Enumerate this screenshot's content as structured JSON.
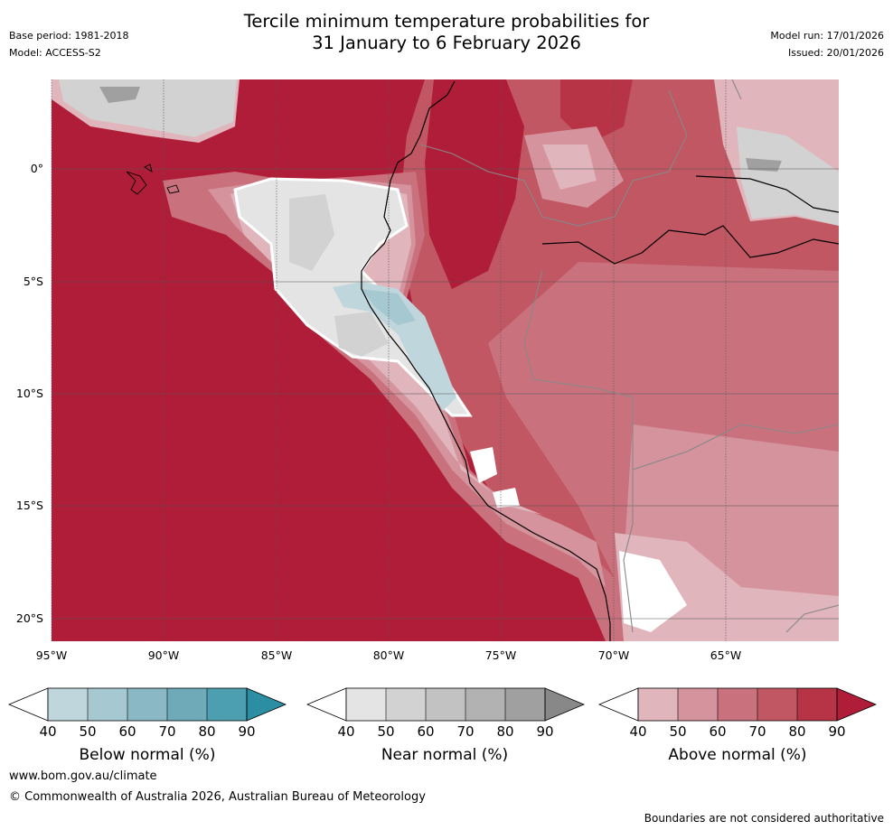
{
  "header": {
    "base_period": "Base period: 1981-2018",
    "model": "Model: ACCESS-S2",
    "title_line1": "Tercile minimum temperature probabilities for",
    "title_line2": "31 January to 6 February 2026",
    "model_run": "Model run: 17/01/2026",
    "issued": "Issued: 20/01/2026"
  },
  "map": {
    "lat_ticks": [
      "0°",
      "5°S",
      "10°S",
      "15°S",
      "20°S"
    ],
    "lon_ticks": [
      "95°W",
      "90°W",
      "85°W",
      "80°W",
      "75°W",
      "70°W",
      "65°W"
    ]
  },
  "legends": [
    {
      "label": "Below normal (%)",
      "ticks": [
        "40",
        "50",
        "60",
        "70",
        "80",
        "90"
      ],
      "colors": [
        "#bfd6dc",
        "#a6c8d0",
        "#8ab8c4",
        "#6eaab8",
        "#4b9fb0",
        "#2b8ea3"
      ]
    },
    {
      "label": "Near normal (%)",
      "ticks": [
        "40",
        "50",
        "60",
        "70",
        "80",
        "90"
      ],
      "colors": [
        "#e4e4e4",
        "#d2d2d2",
        "#c2c2c2",
        "#b2b2b2",
        "#a0a0a0",
        "#888888"
      ]
    },
    {
      "label": "Above normal (%)",
      "ticks": [
        "40",
        "50",
        "60",
        "70",
        "80",
        "90"
      ],
      "colors": [
        "#e0b5bb",
        "#d4939d",
        "#c9727e",
        "#c05763",
        "#b73446",
        "#b01d38"
      ]
    }
  ],
  "footer": {
    "website": "www.bom.gov.au/climate",
    "copyright": "© Commonwealth of Australia 2026, Australian Bureau of Meteorology",
    "disclaimer": "Boundaries are not considered authoritative"
  }
}
